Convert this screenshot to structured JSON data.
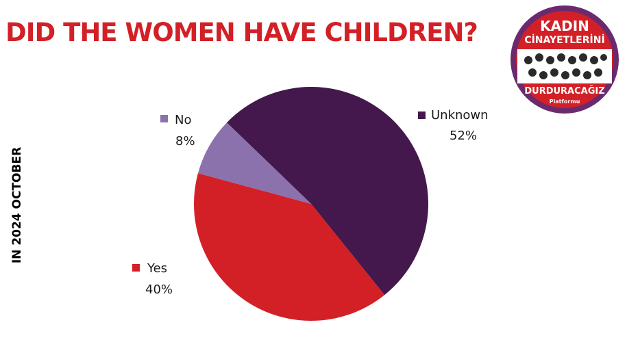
{
  "header": {
    "title": "DID THE WOMEN HAVE CHILDREN?"
  },
  "side_label": "IN 2024 OCTOBER",
  "logo": {
    "line1": "KADIN",
    "line2": "CİNAYETLERİNİ",
    "line3": "DURDURACAĞIZ",
    "line4": "Platformu"
  },
  "colors": {
    "title": "#d32027",
    "unknown": "#44184d",
    "yes": "#d32027",
    "no": "#8b72ac",
    "logo_purple": "#6b2a6e",
    "logo_red": "#d32027"
  },
  "chart_data": {
    "type": "pie",
    "title": "DID THE WOMEN HAVE CHILDREN?",
    "slices": [
      {
        "label": "Unknown",
        "value": 52,
        "display": "52%",
        "color": "#44184d"
      },
      {
        "label": "Yes",
        "value": 40,
        "display": "40%",
        "color": "#d32027"
      },
      {
        "label": "No",
        "value": 8,
        "display": "8%",
        "color": "#8b72ac"
      }
    ]
  }
}
